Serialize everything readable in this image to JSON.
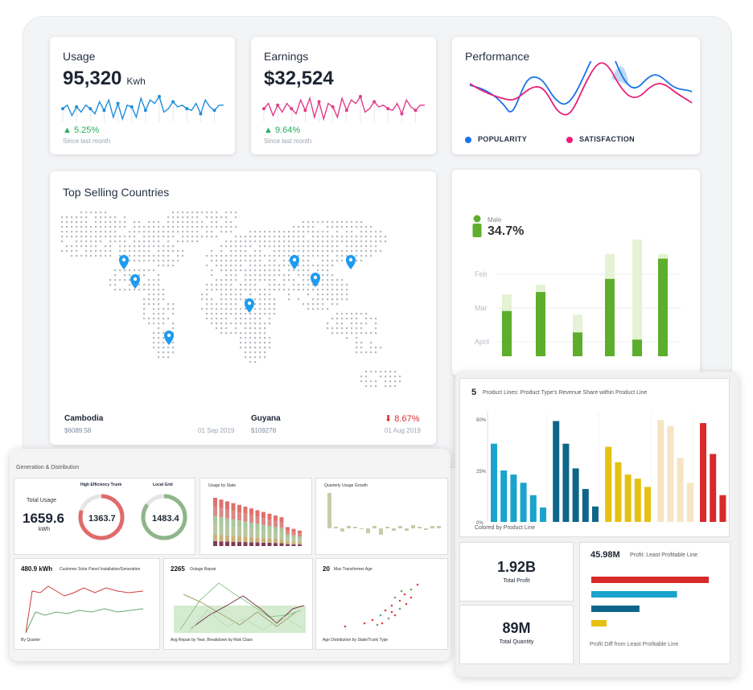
{
  "usage": {
    "title": "Usage",
    "value": "95,320",
    "unit": "Kwh",
    "trend": "5.25%",
    "since": "Since last month",
    "spark": [
      6,
      8,
      2,
      7,
      4,
      8,
      6,
      3,
      10,
      5,
      11,
      1,
      9,
      0,
      8,
      7,
      1,
      12,
      5,
      11,
      9,
      13,
      4,
      6,
      10,
      7,
      8,
      6,
      5,
      9,
      3,
      11,
      7,
      5,
      8,
      8
    ]
  },
  "earnings": {
    "title": "Earnings",
    "value": "$32,524",
    "trend": "9.64%",
    "since": "Since last month",
    "spark": [
      6,
      9,
      2,
      8,
      4,
      9,
      6,
      3,
      11,
      5,
      12,
      1,
      10,
      0,
      9,
      7,
      1,
      12,
      5,
      11,
      9,
      13,
      4,
      6,
      10,
      7,
      8,
      6,
      5,
      9,
      3,
      11,
      7,
      5,
      8,
      8
    ]
  },
  "performance": {
    "title": "Performance",
    "legend": [
      "POPULARITY",
      "SATISFACTION"
    ],
    "colors": [
      "#1a73e8",
      "#e91e78"
    ]
  },
  "countries": {
    "title": "Top Selling Countries",
    "items": [
      {
        "name": "Cambodia",
        "amount": "$6089.58",
        "date": "01 Sep 2019"
      },
      {
        "name": "Guyana",
        "amount": "$109278",
        "date": "01 Aug 2019",
        "change": "8.67%"
      }
    ]
  },
  "gender": {
    "label": "Male",
    "value": "34.7%",
    "months": [
      "Feb",
      "Mar",
      "April"
    ],
    "icon": "person-icon",
    "bars": [
      0.52,
      0.6,
      0.35,
      0.86,
      0.98,
      0.86
    ],
    "fills": [
      0.38,
      0.54,
      0.2,
      0.65,
      0.14,
      0.82
    ]
  },
  "generation": {
    "title": "Generation & Distribution",
    "total_usage": {
      "label": "Total Usage",
      "value": "1659.6",
      "unit": "kWh"
    },
    "trunk": {
      "label": "High Efficiency Trunk",
      "value": "1363.7",
      "fraction": 0.8,
      "color": "#e06b6b"
    },
    "grid": {
      "label": "Local Grid",
      "value": "1483.4",
      "fraction": 0.85,
      "color": "#8fb58a"
    },
    "usage_by_state": "Usage by State",
    "quarterly": "Quarterly Usage Growth",
    "solar": {
      "value": "480.9 kWh",
      "label": "Customer Solar Panel Installation/Generation",
      "axis": "By Quarter"
    },
    "outage": {
      "value": "2265",
      "label": "Outage Repair",
      "axis": "Avg Repair by Year, Breakdown by Risk Class"
    },
    "transformer": {
      "value": "20",
      "label": "Max Transformer Age",
      "axis": "Age Distribution by State/Trunk Type"
    }
  },
  "products": {
    "count": "5",
    "title": "Product Lines: Product Type's Revenue Share within Product Line",
    "yticks": [
      "50%",
      "25%",
      "0%"
    ],
    "footer": "Colored by Product Line",
    "colors": [
      "#1aa3cc",
      "#0f6589",
      "#e6c012",
      "#f7e4c2",
      "#d82a2a"
    ],
    "groups": [
      [
        0.76,
        0.5,
        0.46,
        0.38,
        0.26,
        0.14
      ],
      [
        0.98,
        0.76,
        0.52,
        0.32,
        0.15
      ],
      [
        0.73,
        0.58,
        0.46,
        0.42,
        0.34
      ],
      [
        0.99,
        0.93,
        0.62,
        0.38
      ],
      [
        0.96,
        0.66,
        0.26,
        0.19,
        0.15
      ]
    ]
  },
  "profit": {
    "value": "1.92B",
    "label": "Total Profit"
  },
  "quantity": {
    "value": "89M",
    "label": "Total Quantity"
  },
  "least": {
    "value": "45.98M",
    "label": "Profit: Least Profitable Line",
    "footer": "Profit Diff from Least Profitable Line",
    "bars": [
      1.0,
      0.73,
      0.41,
      0.13
    ],
    "colors": [
      "#d82a2a",
      "#1aa3cc",
      "#0f6589",
      "#e6c012"
    ]
  }
}
